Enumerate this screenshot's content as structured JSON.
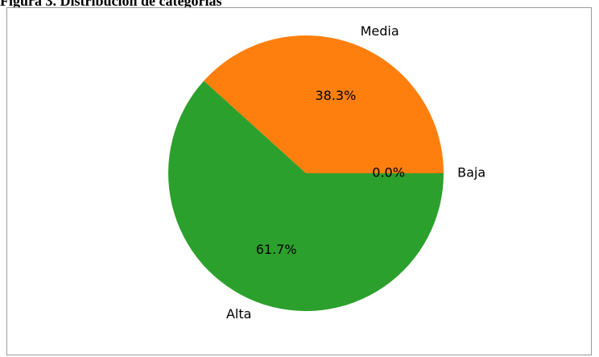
{
  "document": {
    "caption": "Figura 3. Distribución de categorías"
  },
  "chart_data": {
    "type": "pie",
    "slices": [
      {
        "label": "Baja",
        "value": 0.0,
        "pct_label": "0.0%",
        "color": "#1f77b4"
      },
      {
        "label": "Media",
        "value": 38.3,
        "pct_label": "38.3%",
        "color": "#ff7f0e"
      },
      {
        "label": "Alta",
        "value": 61.7,
        "pct_label": "61.7%",
        "color": "#2ca02c"
      }
    ],
    "start_angle_deg": 0,
    "direction": "counterclockwise"
  }
}
